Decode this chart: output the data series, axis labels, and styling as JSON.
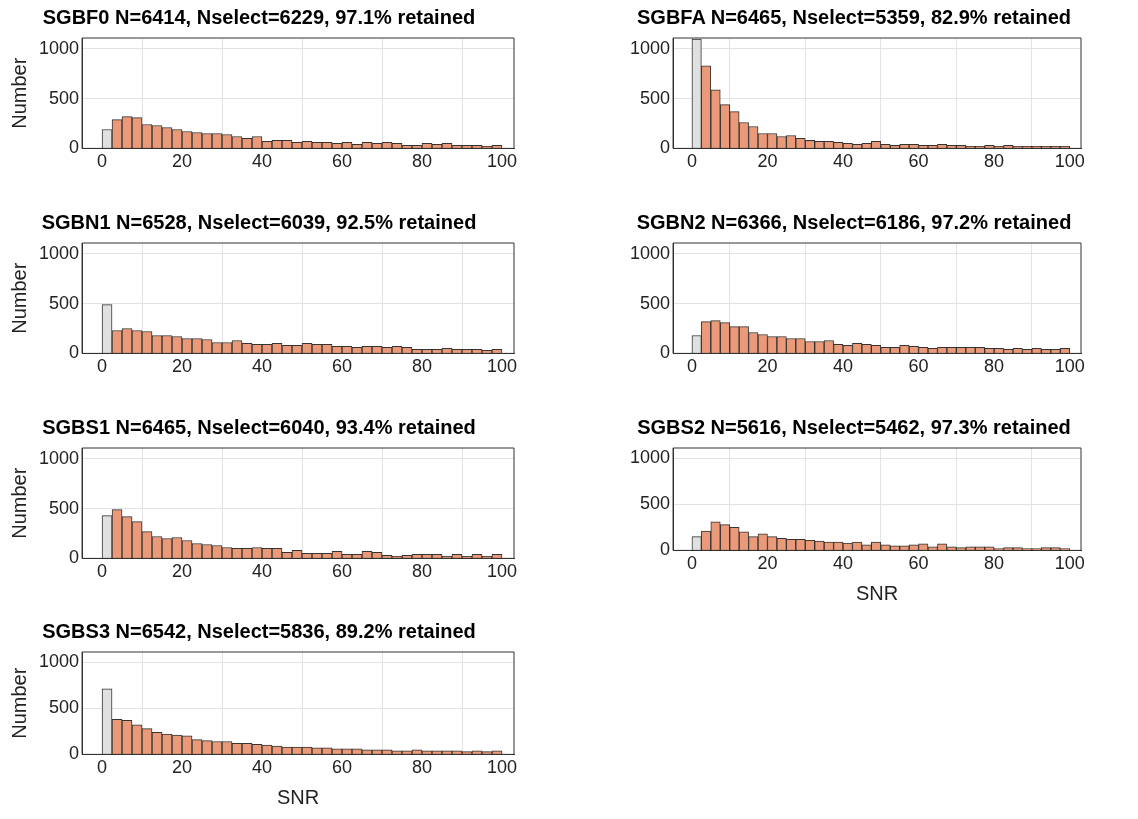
{
  "chart_data": [
    {
      "type": "histogram",
      "title": "SGBF0 N=6414, Nselect=6229, 97.1% retained",
      "ylabel": "Number",
      "bins": [
        0,
        2.5,
        5,
        7.5,
        10,
        12.5,
        15,
        17.5,
        20,
        22.5,
        25,
        27.5,
        30,
        32.5,
        35,
        37.5,
        40,
        42.5,
        45,
        47.5,
        50,
        52.5,
        55,
        57.5,
        60,
        62.5,
        65,
        67.5,
        70,
        72.5,
        75,
        77.5,
        80,
        82.5,
        85,
        87.5,
        90,
        92.5,
        95,
        97.5,
        100
      ],
      "values": [
        190,
        290,
        320,
        310,
        240,
        230,
        210,
        190,
        170,
        160,
        150,
        150,
        140,
        120,
        100,
        120,
        70,
        80,
        80,
        60,
        70,
        60,
        60,
        50,
        60,
        40,
        60,
        50,
        60,
        50,
        30,
        30,
        50,
        40,
        50,
        30,
        30,
        30,
        20,
        30
      ],
      "colors": [
        "#e0e0e0",
        "#ea9a78",
        "#ea9a78",
        "#ea9a78",
        "#ea9a78",
        "#ea9a78",
        "#ea9a78",
        "#ea9a78",
        "#ea9a78",
        "#ea9a78",
        "#ea9a78",
        "#ea9a78",
        "#ea9a78",
        "#ea9a78",
        "#ea9a78",
        "#ea9a78",
        "#ea9a78",
        "#ea9a78",
        "#ea9a78",
        "#ea9a78",
        "#ea9a78",
        "#ea9a78",
        "#ea9a78",
        "#ea9a78",
        "#ea9a78",
        "#ea9a78",
        "#ea9a78",
        "#ea9a78",
        "#ea9a78",
        "#ea9a78",
        "#ea9a78",
        "#ea9a78",
        "#ea9a78",
        "#ea9a78",
        "#ea9a78",
        "#ea9a78",
        "#ea9a78",
        "#ea9a78",
        "#ea9a78",
        "#ea9a78"
      ],
      "xlim": [
        -5,
        103
      ],
      "ylim": [
        0,
        1110
      ],
      "xticks": [
        0,
        20,
        40,
        60,
        80,
        100
      ],
      "yticks": [
        0,
        500,
        1000
      ],
      "grid": true
    },
    {
      "type": "histogram",
      "title": "SGBFA N=6465, Nselect=5359, 82.9% retained",
      "bins": [
        0,
        2.5,
        5,
        7.5,
        10,
        12.5,
        15,
        17.5,
        20,
        22.5,
        25,
        27.5,
        30,
        32.5,
        35,
        37.5,
        40,
        42.5,
        45,
        47.5,
        50,
        52.5,
        55,
        57.5,
        60,
        62.5,
        65,
        67.5,
        70,
        72.5,
        75,
        77.5,
        80,
        82.5,
        85,
        87.5,
        90,
        92.5,
        95,
        97.5,
        100
      ],
      "values": [
        1100,
        830,
        590,
        440,
        370,
        260,
        220,
        150,
        150,
        120,
        130,
        100,
        80,
        70,
        70,
        60,
        50,
        40,
        50,
        70,
        40,
        30,
        40,
        40,
        30,
        30,
        40,
        30,
        30,
        20,
        20,
        30,
        20,
        30,
        20,
        20,
        20,
        20,
        20,
        20
      ],
      "colors": [
        "#e0e0e0",
        "#ea9a78",
        "#ea9a78",
        "#ea9a78",
        "#ea9a78",
        "#ea9a78",
        "#ea9a78",
        "#ea9a78",
        "#ea9a78",
        "#ea9a78",
        "#ea9a78",
        "#ea9a78",
        "#ea9a78",
        "#ea9a78",
        "#ea9a78",
        "#ea9a78",
        "#ea9a78",
        "#ea9a78",
        "#ea9a78",
        "#ea9a78",
        "#ea9a78",
        "#ea9a78",
        "#ea9a78",
        "#ea9a78",
        "#ea9a78",
        "#ea9a78",
        "#ea9a78",
        "#ea9a78",
        "#ea9a78",
        "#ea9a78",
        "#ea9a78",
        "#ea9a78",
        "#ea9a78",
        "#ea9a78",
        "#ea9a78",
        "#ea9a78",
        "#ea9a78",
        "#ea9a78",
        "#ea9a78",
        "#ea9a78"
      ],
      "xlim": [
        -5,
        103
      ],
      "ylim": [
        0,
        1110
      ],
      "xticks": [
        0,
        20,
        40,
        60,
        80,
        100
      ],
      "yticks": [
        0,
        500,
        1000
      ],
      "grid": true
    },
    {
      "type": "histogram",
      "title": "SGBN1 N=6528, Nselect=6039, 92.5% retained",
      "ylabel": "Number",
      "bins": [
        0,
        2.5,
        5,
        7.5,
        10,
        12.5,
        15,
        17.5,
        20,
        22.5,
        25,
        27.5,
        30,
        32.5,
        35,
        37.5,
        40,
        42.5,
        45,
        47.5,
        50,
        52.5,
        55,
        57.5,
        60,
        62.5,
        65,
        67.5,
        70,
        72.5,
        75,
        77.5,
        80,
        82.5,
        85,
        87.5,
        90,
        92.5,
        95,
        97.5,
        100
      ],
      "values": [
        490,
        230,
        250,
        230,
        220,
        180,
        180,
        170,
        150,
        150,
        140,
        110,
        110,
        130,
        100,
        90,
        90,
        100,
        80,
        80,
        100,
        90,
        90,
        70,
        70,
        60,
        70,
        70,
        60,
        70,
        60,
        40,
        40,
        40,
        50,
        40,
        40,
        40,
        30,
        40
      ],
      "colors": [
        "#e0e0e0",
        "#ea9a78",
        "#ea9a78",
        "#ea9a78",
        "#ea9a78",
        "#ea9a78",
        "#ea9a78",
        "#ea9a78",
        "#ea9a78",
        "#ea9a78",
        "#ea9a78",
        "#ea9a78",
        "#ea9a78",
        "#ea9a78",
        "#ea9a78",
        "#ea9a78",
        "#ea9a78",
        "#ea9a78",
        "#ea9a78",
        "#ea9a78",
        "#ea9a78",
        "#ea9a78",
        "#ea9a78",
        "#ea9a78",
        "#ea9a78",
        "#ea9a78",
        "#ea9a78",
        "#ea9a78",
        "#ea9a78",
        "#ea9a78",
        "#ea9a78",
        "#ea9a78",
        "#ea9a78",
        "#ea9a78",
        "#ea9a78",
        "#ea9a78",
        "#ea9a78",
        "#ea9a78",
        "#ea9a78",
        "#ea9a78"
      ],
      "xlim": [
        -5,
        103
      ],
      "ylim": [
        0,
        1110
      ],
      "xticks": [
        0,
        20,
        40,
        60,
        80,
        100
      ],
      "yticks": [
        0,
        500,
        1000
      ],
      "grid": true
    },
    {
      "type": "histogram",
      "title": "SGBN2 N=6366, Nselect=6186, 97.2% retained",
      "bins": [
        0,
        2.5,
        5,
        7.5,
        10,
        12.5,
        15,
        17.5,
        20,
        22.5,
        25,
        27.5,
        30,
        32.5,
        35,
        37.5,
        40,
        42.5,
        45,
        47.5,
        50,
        52.5,
        55,
        57.5,
        60,
        62.5,
        65,
        67.5,
        70,
        72.5,
        75,
        77.5,
        80,
        82.5,
        85,
        87.5,
        90,
        92.5,
        95,
        97.5,
        100
      ],
      "values": [
        180,
        320,
        330,
        310,
        270,
        270,
        210,
        190,
        170,
        170,
        150,
        150,
        120,
        120,
        130,
        90,
        80,
        100,
        90,
        80,
        60,
        60,
        80,
        70,
        60,
        50,
        60,
        60,
        60,
        60,
        60,
        50,
        50,
        40,
        50,
        40,
        50,
        40,
        40,
        50
      ],
      "colors": [
        "#e0e0e0",
        "#ea9a78",
        "#ea9a78",
        "#ea9a78",
        "#ea9a78",
        "#ea9a78",
        "#ea9a78",
        "#ea9a78",
        "#ea9a78",
        "#ea9a78",
        "#ea9a78",
        "#ea9a78",
        "#ea9a78",
        "#ea9a78",
        "#ea9a78",
        "#ea9a78",
        "#ea9a78",
        "#ea9a78",
        "#ea9a78",
        "#ea9a78",
        "#ea9a78",
        "#ea9a78",
        "#ea9a78",
        "#ea9a78",
        "#ea9a78",
        "#ea9a78",
        "#ea9a78",
        "#ea9a78",
        "#ea9a78",
        "#ea9a78",
        "#ea9a78",
        "#ea9a78",
        "#ea9a78",
        "#ea9a78",
        "#ea9a78",
        "#ea9a78",
        "#ea9a78",
        "#ea9a78",
        "#ea9a78",
        "#ea9a78"
      ],
      "xlim": [
        -5,
        103
      ],
      "ylim": [
        0,
        1110
      ],
      "xticks": [
        0,
        20,
        40,
        60,
        80,
        100
      ],
      "yticks": [
        0,
        500,
        1000
      ],
      "grid": true
    },
    {
      "type": "histogram",
      "title": "SGBS1 N=6465, Nselect=6040, 93.4% retained",
      "ylabel": "Number",
      "bins": [
        0,
        2.5,
        5,
        7.5,
        10,
        12.5,
        15,
        17.5,
        20,
        22.5,
        25,
        27.5,
        30,
        32.5,
        35,
        37.5,
        40,
        42.5,
        45,
        47.5,
        50,
        52.5,
        55,
        57.5,
        60,
        62.5,
        65,
        67.5,
        70,
        72.5,
        75,
        77.5,
        80,
        82.5,
        85,
        87.5,
        90,
        92.5,
        95,
        97.5,
        100
      ],
      "values": [
        430,
        490,
        420,
        370,
        270,
        220,
        200,
        210,
        180,
        150,
        140,
        130,
        110,
        100,
        100,
        110,
        100,
        100,
        60,
        80,
        50,
        50,
        50,
        70,
        40,
        40,
        70,
        60,
        30,
        20,
        30,
        40,
        40,
        40,
        20,
        40,
        20,
        40,
        20,
        40
      ],
      "colors": [
        "#e0e0e0",
        "#ea9a78",
        "#ea9a78",
        "#ea9a78",
        "#ea9a78",
        "#ea9a78",
        "#ea9a78",
        "#ea9a78",
        "#ea9a78",
        "#ea9a78",
        "#ea9a78",
        "#ea9a78",
        "#ea9a78",
        "#ea9a78",
        "#ea9a78",
        "#ea9a78",
        "#ea9a78",
        "#ea9a78",
        "#ea9a78",
        "#ea9a78",
        "#ea9a78",
        "#ea9a78",
        "#ea9a78",
        "#ea9a78",
        "#ea9a78",
        "#ea9a78",
        "#ea9a78",
        "#ea9a78",
        "#ea9a78",
        "#ea9a78",
        "#ea9a78",
        "#ea9a78",
        "#ea9a78",
        "#ea9a78",
        "#ea9a78",
        "#ea9a78",
        "#ea9a78",
        "#ea9a78",
        "#ea9a78",
        "#ea9a78"
      ],
      "xlim": [
        -5,
        103
      ],
      "ylim": [
        0,
        1110
      ],
      "xticks": [
        0,
        20,
        40,
        60,
        80,
        100
      ],
      "yticks": [
        0,
        500,
        1000
      ],
      "grid": true
    },
    {
      "type": "histogram",
      "title": "SGBS2 N=5616, Nselect=5462, 97.3% retained",
      "xlabel": "SNR",
      "bins": [
        0,
        2.5,
        5,
        7.5,
        10,
        12.5,
        15,
        17.5,
        20,
        22.5,
        25,
        27.5,
        30,
        32.5,
        35,
        37.5,
        40,
        42.5,
        45,
        47.5,
        50,
        52.5,
        55,
        57.5,
        60,
        62.5,
        65,
        67.5,
        70,
        72.5,
        75,
        77.5,
        80,
        82.5,
        85,
        87.5,
        90,
        92.5,
        95,
        97.5,
        100
      ],
      "values": [
        150,
        210,
        310,
        280,
        250,
        200,
        150,
        180,
        150,
        130,
        120,
        120,
        110,
        100,
        90,
        90,
        80,
        90,
        60,
        90,
        60,
        50,
        50,
        60,
        70,
        40,
        70,
        40,
        30,
        40,
        40,
        40,
        20,
        30,
        30,
        20,
        20,
        30,
        30,
        20
      ],
      "colors": [
        "#e0e0e0",
        "#ea9a78",
        "#ea9a78",
        "#ea9a78",
        "#ea9a78",
        "#ea9a78",
        "#ea9a78",
        "#ea9a78",
        "#ea9a78",
        "#ea9a78",
        "#ea9a78",
        "#ea9a78",
        "#ea9a78",
        "#ea9a78",
        "#ea9a78",
        "#ea9a78",
        "#ea9a78",
        "#ea9a78",
        "#ea9a78",
        "#ea9a78",
        "#ea9a78",
        "#ea9a78",
        "#ea9a78",
        "#ea9a78",
        "#ea9a78",
        "#ea9a78",
        "#ea9a78",
        "#ea9a78",
        "#ea9a78",
        "#ea9a78",
        "#ea9a78",
        "#ea9a78",
        "#ea9a78",
        "#ea9a78",
        "#ea9a78",
        "#ea9a78",
        "#ea9a78",
        "#ea9a78",
        "#ea9a78",
        "#ea9a78"
      ],
      "xlim": [
        -5,
        103
      ],
      "ylim": [
        0,
        1110
      ],
      "xticks": [
        0,
        20,
        40,
        60,
        80,
        100
      ],
      "yticks": [
        0,
        500,
        1000
      ],
      "grid": true
    },
    {
      "type": "histogram",
      "title": "SGBS3 N=6542, Nselect=5836, 89.2% retained",
      "xlabel": "SNR",
      "ylabel": "Number",
      "bins": [
        0,
        2.5,
        5,
        7.5,
        10,
        12.5,
        15,
        17.5,
        20,
        22.5,
        25,
        27.5,
        30,
        32.5,
        35,
        37.5,
        40,
        42.5,
        45,
        47.5,
        50,
        52.5,
        55,
        57.5,
        60,
        62.5,
        65,
        67.5,
        70,
        72.5,
        75,
        77.5,
        80,
        82.5,
        85,
        87.5,
        90,
        92.5,
        95,
        97.5,
        100
      ],
      "values": [
        710,
        380,
        370,
        320,
        280,
        240,
        220,
        210,
        200,
        160,
        150,
        140,
        140,
        120,
        120,
        110,
        100,
        90,
        80,
        80,
        80,
        70,
        70,
        60,
        60,
        60,
        50,
        50,
        50,
        40,
        40,
        50,
        40,
        40,
        40,
        40,
        30,
        40,
        30,
        40
      ],
      "colors": [
        "#e0e0e0",
        "#ea9a78",
        "#ea9a78",
        "#ea9a78",
        "#ea9a78",
        "#ea9a78",
        "#ea9a78",
        "#ea9a78",
        "#ea9a78",
        "#ea9a78",
        "#ea9a78",
        "#ea9a78",
        "#ea9a78",
        "#ea9a78",
        "#ea9a78",
        "#ea9a78",
        "#ea9a78",
        "#ea9a78",
        "#ea9a78",
        "#ea9a78",
        "#ea9a78",
        "#ea9a78",
        "#ea9a78",
        "#ea9a78",
        "#ea9a78",
        "#ea9a78",
        "#ea9a78",
        "#ea9a78",
        "#ea9a78",
        "#ea9a78",
        "#ea9a78",
        "#ea9a78",
        "#ea9a78",
        "#ea9a78",
        "#ea9a78",
        "#ea9a78",
        "#ea9a78",
        "#ea9a78",
        "#ea9a78",
        "#ea9a78"
      ],
      "xlim": [
        -5,
        103
      ],
      "ylim": [
        0,
        1110
      ],
      "xticks": [
        0,
        20,
        40,
        60,
        80,
        100
      ],
      "yticks": [
        0,
        500,
        1000
      ],
      "grid": true
    }
  ]
}
